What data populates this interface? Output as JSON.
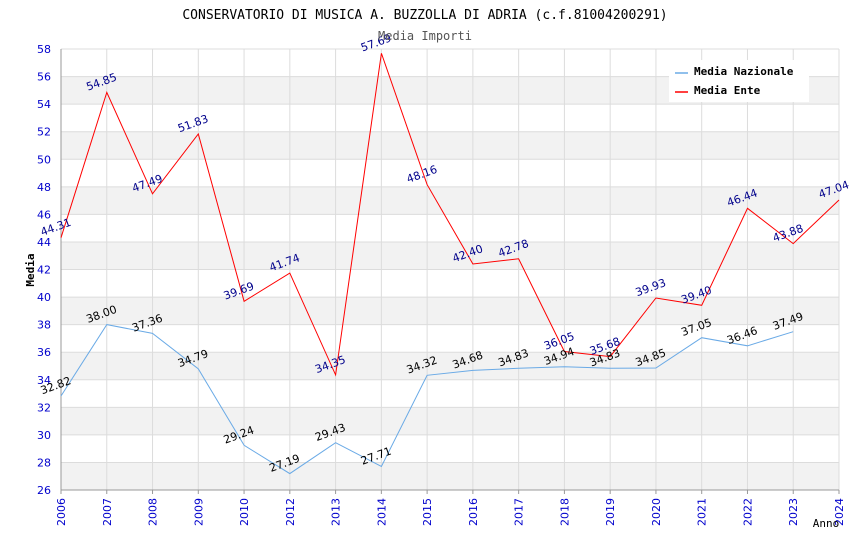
{
  "chart_data": {
    "type": "line",
    "title": "CONSERVATORIO DI MUSICA A. BUZZOLLA DI ADRIA (c.f.81004200291)",
    "subtitle": "Media Importi",
    "xlabel": "Anno",
    "ylabel": "Media",
    "ylim": [
      26,
      58
    ],
    "y_ticks": [
      26,
      28,
      30,
      32,
      34,
      36,
      38,
      40,
      42,
      44,
      46,
      48,
      50,
      52,
      54,
      56,
      58
    ],
    "x": [
      2006,
      2007,
      2008,
      2009,
      2010,
      2012,
      2013,
      2014,
      2015,
      2016,
      2017,
      2018,
      2019,
      2020,
      2021,
      2022,
      2023,
      2024
    ],
    "grid": true,
    "legend_position": "top-right",
    "series": [
      {
        "name": "Media Nazionale",
        "color": "#6aaae6",
        "label_color": "#000000",
        "values": [
          32.82,
          38.0,
          37.36,
          34.79,
          29.24,
          27.19,
          29.43,
          27.71,
          34.32,
          34.68,
          34.83,
          34.94,
          34.83,
          34.85,
          37.05,
          36.46,
          37.49,
          null
        ]
      },
      {
        "name": "Media Ente",
        "color": "#ff0000",
        "label_color": "#00008b",
        "values": [
          44.31,
          54.85,
          47.49,
          51.83,
          39.69,
          41.74,
          34.35,
          57.69,
          48.16,
          42.4,
          42.78,
          36.05,
          35.68,
          39.93,
          39.4,
          46.44,
          43.88,
          47.04
        ]
      }
    ]
  }
}
